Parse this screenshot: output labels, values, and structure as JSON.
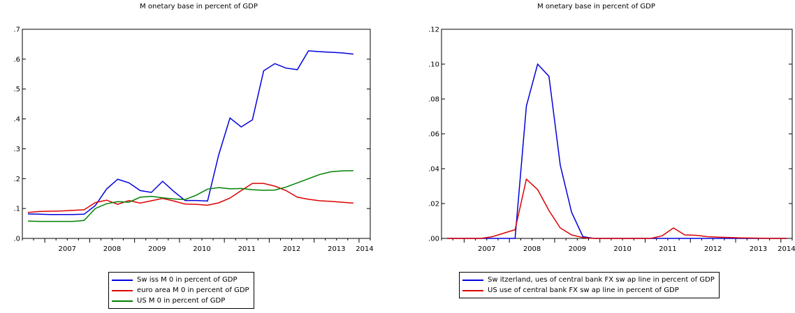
{
  "chart_data": [
    {
      "type": "line",
      "title": "M onetary base in percent of GDP",
      "xlabel": "",
      "ylabel": "",
      "x_ticks": [
        "2007",
        "2008",
        "2009",
        "2010",
        "2011",
        "2012",
        "2013",
        "2014"
      ],
      "xlim": [
        2006.5,
        2014.25
      ],
      "ylim": [
        0.0,
        0.7
      ],
      "y_ticks": [
        0.0,
        0.1,
        0.2,
        0.3,
        0.4,
        0.5,
        0.6,
        0.7
      ],
      "y_tick_labels": [
        ".0",
        ".1",
        ".2",
        ".3",
        ".4",
        ".5",
        ".6",
        ".7"
      ],
      "legend_position": "bottom",
      "x": [
        2006.625,
        2006.875,
        2007.125,
        2007.375,
        2007.625,
        2007.875,
        2008.125,
        2008.375,
        2008.625,
        2008.875,
        2009.125,
        2009.375,
        2009.625,
        2009.875,
        2010.125,
        2010.375,
        2010.625,
        2010.875,
        2011.125,
        2011.375,
        2011.625,
        2011.875,
        2012.125,
        2012.375,
        2012.625,
        2012.875,
        2013.125,
        2013.375,
        2013.625,
        2013.875
      ],
      "series": [
        {
          "name": "Sw iss M 0 in percent of GDP",
          "color": "#0000dd",
          "values": [
            0.082,
            0.081,
            0.08,
            0.08,
            0.08,
            0.081,
            0.11,
            0.165,
            0.198,
            0.186,
            0.16,
            0.154,
            0.191,
            0.157,
            0.127,
            0.127,
            0.125,
            0.28,
            0.403,
            0.373,
            0.397,
            0.561,
            0.585,
            0.57,
            0.565,
            0.628,
            0.625,
            0.623,
            0.621,
            0.617
          ]
        },
        {
          "name": "euro area M 0 in percent of GDP",
          "color": "#dd0000",
          "values": [
            0.087,
            0.09,
            0.091,
            0.092,
            0.094,
            0.096,
            0.12,
            0.128,
            0.114,
            0.127,
            0.118,
            0.126,
            0.134,
            0.125,
            0.115,
            0.114,
            0.111,
            0.119,
            0.135,
            0.16,
            0.184,
            0.184,
            0.175,
            0.16,
            0.138,
            0.131,
            0.126,
            0.124,
            0.121,
            0.118
          ]
        },
        {
          "name": "US M 0 in percent of GDP",
          "color": "#008000",
          "values": [
            0.058,
            0.057,
            0.057,
            0.057,
            0.057,
            0.06,
            0.1,
            0.116,
            0.123,
            0.121,
            0.138,
            0.141,
            0.136,
            0.132,
            0.13,
            0.145,
            0.165,
            0.17,
            0.166,
            0.167,
            0.163,
            0.161,
            0.162,
            0.172,
            0.186,
            0.2,
            0.214,
            0.223,
            0.226,
            0.227
          ]
        }
      ]
    },
    {
      "type": "line",
      "title": "M onetary base in percent of GDP",
      "xlabel": "",
      "ylabel": "",
      "x_ticks": [
        "2007",
        "2008",
        "2009",
        "2010",
        "2011",
        "2012",
        "2013",
        "2014"
      ],
      "xlim": [
        2006.5,
        2014.25
      ],
      "ylim": [
        0.0,
        0.12
      ],
      "y_ticks": [
        0.0,
        0.02,
        0.04,
        0.06,
        0.08,
        0.1,
        0.12
      ],
      "y_tick_labels": [
        ".00",
        ".02",
        ".04",
        ".06",
        ".08",
        ".10",
        ".12"
      ],
      "legend_position": "bottom",
      "x": [
        2006.625,
        2006.875,
        2007.125,
        2007.375,
        2007.625,
        2007.875,
        2008.125,
        2008.375,
        2008.625,
        2008.875,
        2009.125,
        2009.375,
        2009.625,
        2009.875,
        2010.125,
        2010.375,
        2010.625,
        2010.875,
        2011.125,
        2011.375,
        2011.625,
        2011.875,
        2012.125,
        2012.375,
        2012.625,
        2012.875,
        2013.125,
        2013.375,
        2013.625,
        2013.875,
        2014.125
      ],
      "series": [
        {
          "name": "Sw itzerland, ues of central bank FX sw ap line in percent of GDP",
          "color": "#0000dd",
          "values": [
            0,
            0,
            0,
            0,
            0,
            0,
            0,
            0.076,
            0.1,
            0.093,
            0.042,
            0.015,
            0.001,
            0,
            0,
            0,
            0,
            0,
            0,
            0,
            0,
            0,
            0,
            0,
            0,
            0,
            0,
            0,
            0,
            0,
            0
          ]
        },
        {
          "name": "US use of central bank FX sw ap line in percent of GDP",
          "color": "#dd0000",
          "values": [
            0,
            0,
            0,
            0,
            0.001,
            0.003,
            0.005,
            0.034,
            0.028,
            0.016,
            0.006,
            0.002,
            0.0005,
            0,
            0,
            0,
            0,
            0,
            0,
            0.0015,
            0.006,
            0.002,
            0.0018,
            0.001,
            0.0007,
            0.0005,
            0.0003,
            0.0002,
            0.0001,
            0,
            0
          ]
        }
      ]
    }
  ]
}
